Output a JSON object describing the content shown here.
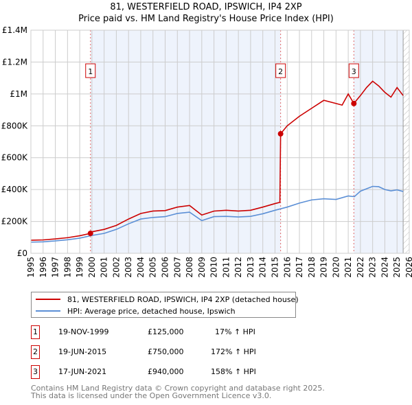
{
  "chart_data": {
    "type": "line",
    "title": "81, WESTERFIELD ROAD, IPSWICH, IP4 2XP",
    "subtitle": "Price paid vs. HM Land Registry's House Price Index (HPI)",
    "xlim": [
      1995,
      2026
    ],
    "ylim": [
      0,
      1400000
    ],
    "x_ticks": [
      "1995",
      "1996",
      "1997",
      "1998",
      "1999",
      "2000",
      "2001",
      "2002",
      "2003",
      "2004",
      "2005",
      "2006",
      "2007",
      "2008",
      "2009",
      "2010",
      "2011",
      "2012",
      "2013",
      "2014",
      "2015",
      "2016",
      "2017",
      "2018",
      "2019",
      "2020",
      "2021",
      "2022",
      "2023",
      "2024",
      "2025",
      "2026"
    ],
    "y_ticks": [
      {
        "v": 0,
        "label": "£0"
      },
      {
        "v": 200000,
        "label": "£200K"
      },
      {
        "v": 400000,
        "label": "£400K"
      },
      {
        "v": 600000,
        "label": "£600K"
      },
      {
        "v": 800000,
        "label": "£800K"
      },
      {
        "v": 1000000,
        "label": "£1M"
      },
      {
        "v": 1200000,
        "label": "£1.2M"
      },
      {
        "v": 1400000,
        "label": "£1.4M"
      }
    ],
    "grid": true,
    "legend_placement": "below",
    "series": [
      {
        "name": "81, WESTERFIELD ROAD, IPSWICH, IP4 2XP (detached house)",
        "color": "#cc0000",
        "x": [
          1995,
          1996,
          1997,
          1998,
          1999,
          1999.88,
          2000,
          2001,
          2002,
          2003,
          2004,
          2005,
          2006,
          2007,
          2008,
          2009,
          2010,
          2011,
          2012,
          2013,
          2014,
          2015,
          2015.4,
          2015.46,
          2016,
          2017,
          2018,
          2019,
          2020,
          2020.5,
          2021,
          2021.46,
          2022,
          2022.5,
          2023,
          2023.5,
          2024,
          2024.5,
          2025,
          2025.5
        ],
        "y": [
          82000,
          84000,
          90000,
          98000,
          110000,
          125000,
          135000,
          150000,
          175000,
          215000,
          250000,
          265000,
          268000,
          290000,
          300000,
          240000,
          265000,
          270000,
          265000,
          270000,
          290000,
          312000,
          320000,
          750000,
          800000,
          860000,
          910000,
          960000,
          940000,
          930000,
          1000000,
          940000,
          990000,
          1040000,
          1080000,
          1050000,
          1010000,
          980000,
          1040000,
          990000
        ]
      },
      {
        "name": "HPI: Average price, detached house, Ipswich",
        "color": "#5b8fd6",
        "x": [
          1995,
          1996,
          1997,
          1998,
          1999,
          2000,
          2001,
          2002,
          2003,
          2004,
          2005,
          2006,
          2007,
          2008,
          2009,
          2010,
          2011,
          2012,
          2013,
          2014,
          2015,
          2016,
          2017,
          2018,
          2019,
          2020,
          2021,
          2021.5,
          2022,
          2023,
          2023.5,
          2024,
          2024.5,
          2025,
          2025.5
        ],
        "y": [
          70000,
          72000,
          78000,
          85000,
          95000,
          112000,
          125000,
          150000,
          185000,
          215000,
          225000,
          230000,
          250000,
          258000,
          205000,
          230000,
          232000,
          228000,
          232000,
          248000,
          270000,
          290000,
          315000,
          335000,
          342000,
          338000,
          360000,
          355000,
          390000,
          420000,
          418000,
          400000,
          392000,
          398000,
          388000
        ]
      }
    ],
    "sales": [
      {
        "num": "1",
        "x": 1999.88,
        "date": "19-NOV-1999",
        "price": "£125,000",
        "value": 125000,
        "hpi": "17% ↑ HPI"
      },
      {
        "num": "2",
        "x": 2015.46,
        "date": "19-JUN-2015",
        "price": "£750,000",
        "value": 750000,
        "hpi": "172% ↑ HPI"
      },
      {
        "num": "3",
        "x": 2021.46,
        "date": "17-JUN-2021",
        "price": "£940,000",
        "value": 940000,
        "hpi": "158% ↑ HPI"
      }
    ],
    "forecast_start": 2025.5
  },
  "footer": [
    "Contains HM Land Registry data © Crown copyright and database right 2025.",
    "This data is licensed under the Open Government Licence v3.0."
  ]
}
